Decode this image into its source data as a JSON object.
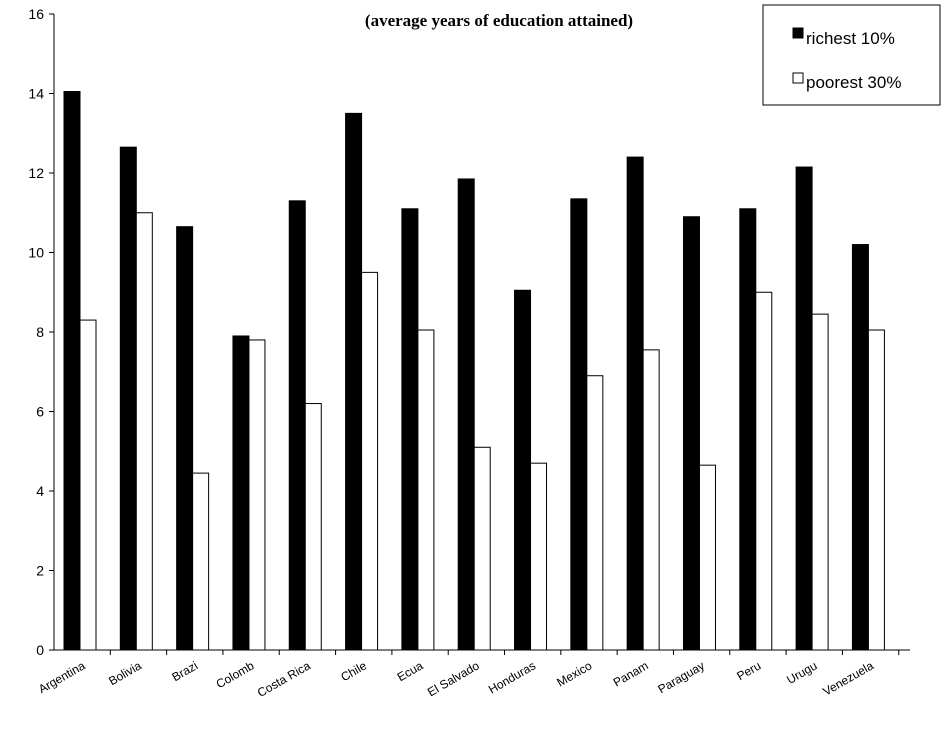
{
  "chart_data": {
    "type": "bar",
    "title": "(average years of education attained)",
    "xlabel": "",
    "ylabel": "",
    "ylim": [
      0,
      16
    ],
    "yticks": [
      0,
      2,
      4,
      6,
      8,
      10,
      12,
      14,
      16
    ],
    "grid": false,
    "legend_position": "top-right",
    "categories": [
      "Argentina",
      "Bolivia",
      "Brazil",
      "Colombia",
      "Costa Rica",
      "Chile",
      "Ecuador",
      "El Salvador",
      "Honduras",
      "Mexico",
      "Panama",
      "Paraguay",
      "Peru",
      "Uruguay",
      "Venezuela"
    ],
    "category_labels": [
      "Argentina",
      "Bolivia",
      "Brazi",
      "Colomb",
      "Costa Rica",
      "Chile",
      "Ecua",
      "El Salvado",
      "Honduras",
      "Mexico",
      "Panam",
      "Paraguay",
      "Peru",
      "Urugu",
      "Venezuela"
    ],
    "series": [
      {
        "name": "richest 10%",
        "color": "#000000",
        "values": [
          14.05,
          12.65,
          10.65,
          7.9,
          11.3,
          13.5,
          11.1,
          11.85,
          9.05,
          11.35,
          12.4,
          10.9,
          11.1,
          12.15,
          10.2
        ]
      },
      {
        "name": "poorest 30%",
        "color": "#ffffff",
        "values": [
          8.3,
          11.0,
          4.45,
          7.8,
          6.2,
          9.5,
          8.05,
          5.1,
          4.7,
          6.9,
          7.55,
          4.65,
          9.0,
          8.45,
          8.05
        ]
      }
    ]
  }
}
